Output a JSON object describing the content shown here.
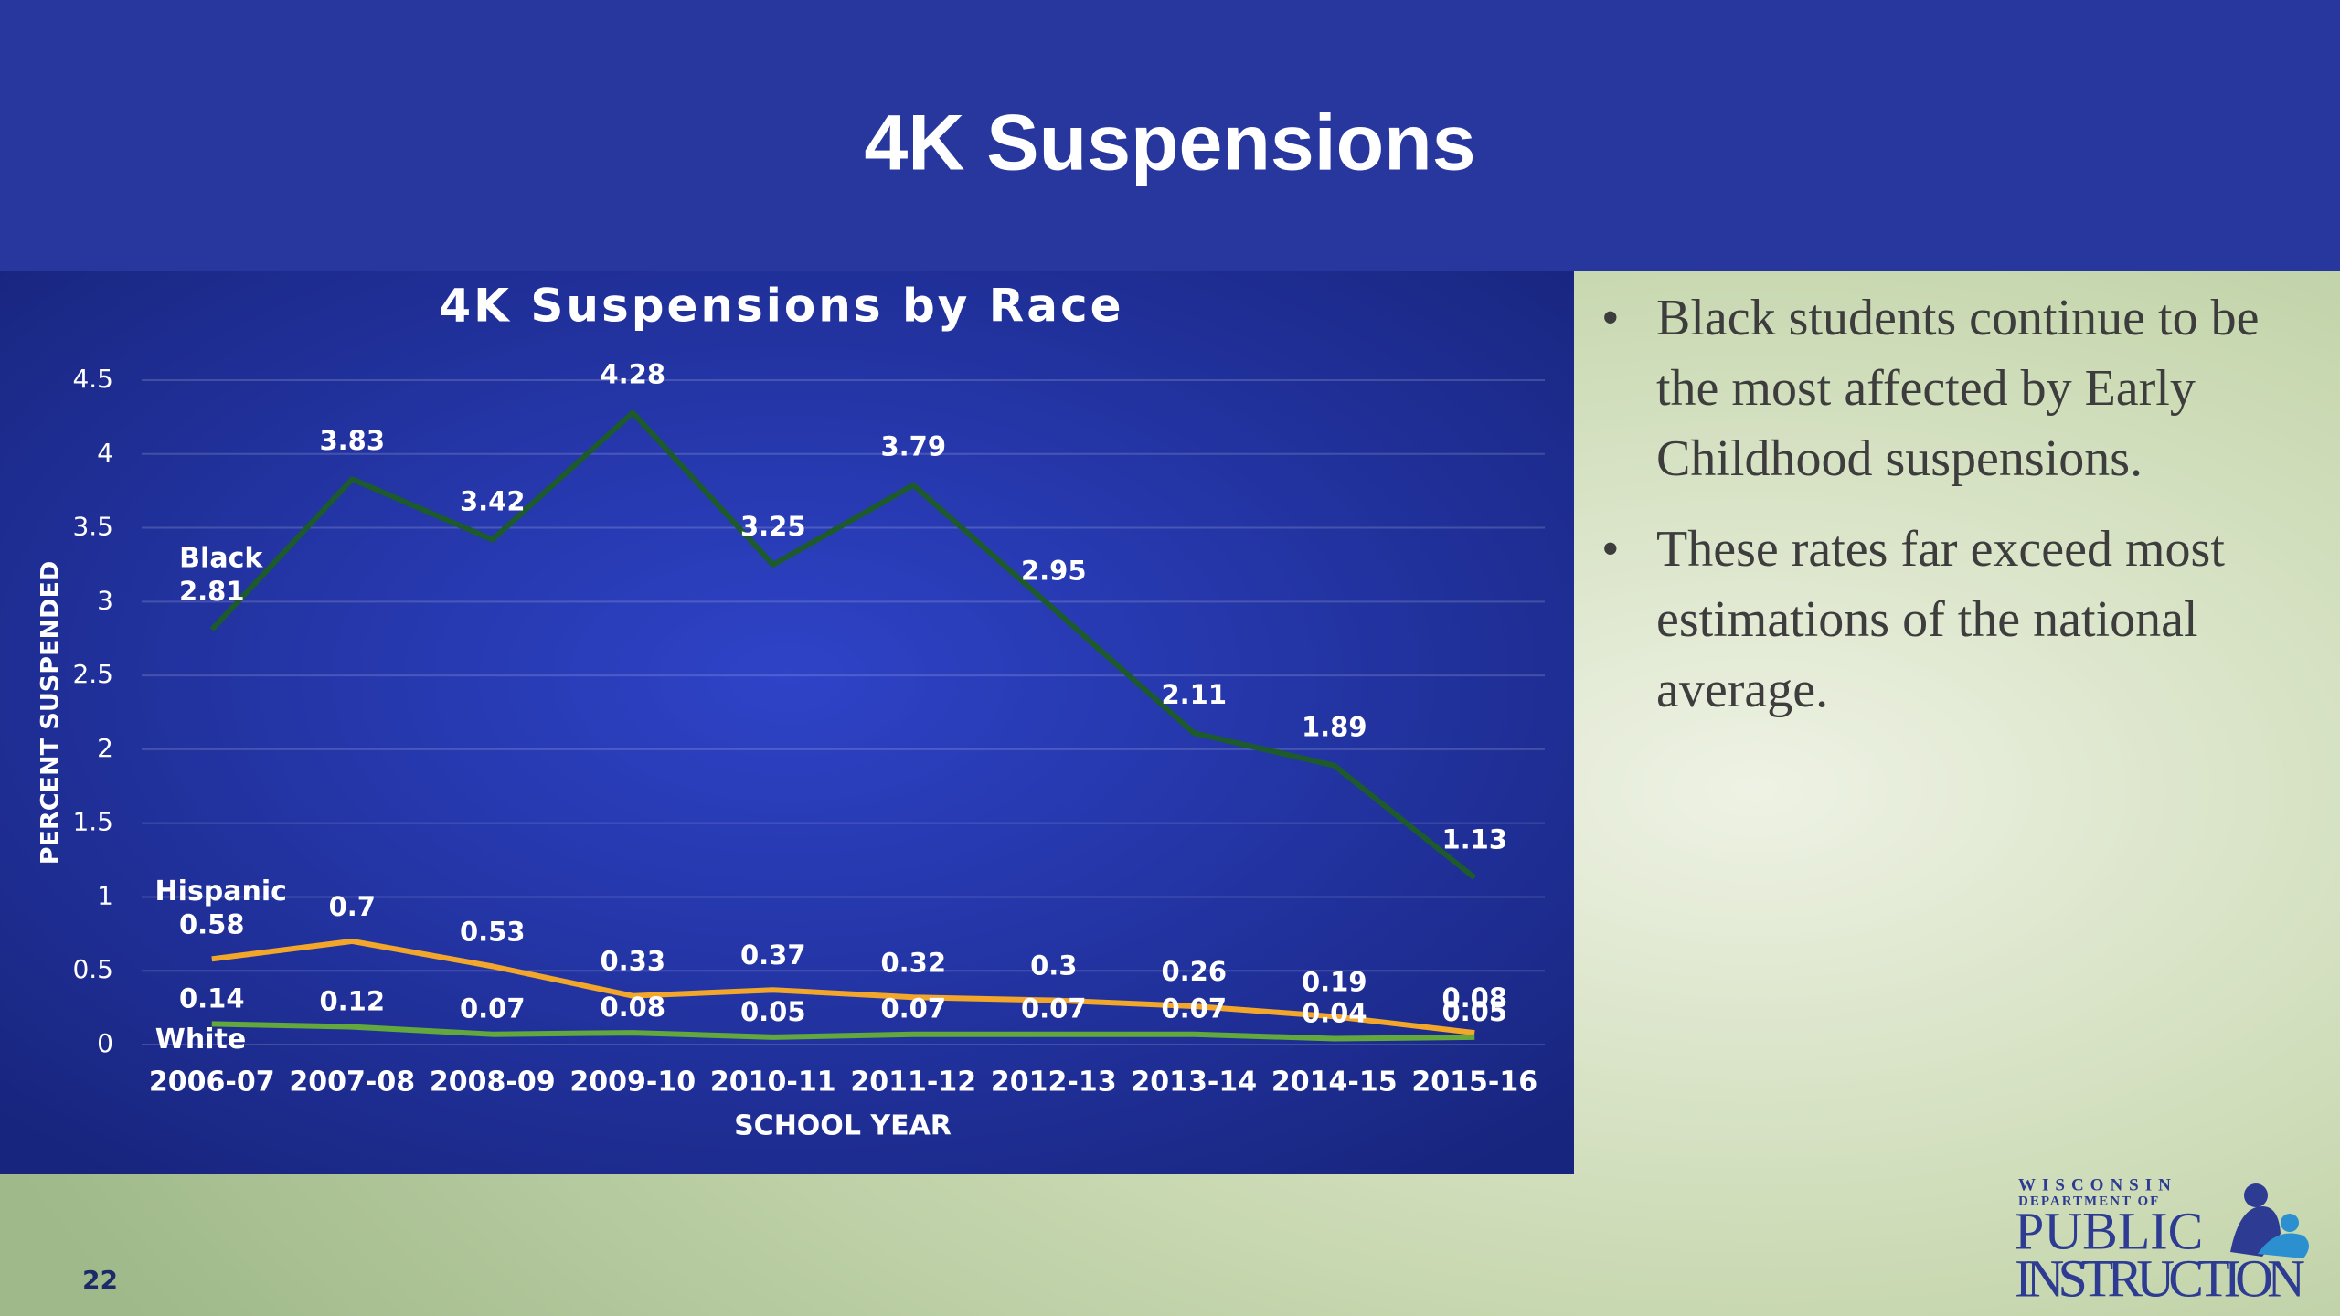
{
  "slide": {
    "title": "4K Suspensions",
    "bullets": [
      "Black students continue to be the most affected by Early Childhood suspensions.",
      "These rates far exceed most estimations of the national average."
    ],
    "page_number": "22",
    "logo": {
      "line1": "WISCONSIN",
      "line2": "DEPARTMENT OF",
      "line3": "PUBLIC",
      "line4": "INSTRUCTION"
    }
  },
  "chart_data": {
    "type": "line",
    "title": "4K Suspensions by Race",
    "x_label": "SCHOOL YEAR",
    "y_label": "PERCENT SUSPENDED",
    "categories": [
      "2006-07",
      "2007-08",
      "2008-09",
      "2009-10",
      "2010-11",
      "2011-12",
      "2012-13",
      "2013-14",
      "2014-15",
      "2015-16"
    ],
    "series": [
      {
        "name": "Black",
        "color": "#1d5a2c",
        "values": [
          2.81,
          3.83,
          3.42,
          4.28,
          3.25,
          3.79,
          2.95,
          2.11,
          1.89,
          1.13
        ]
      },
      {
        "name": "Hispanic",
        "color": "#f2a62a",
        "values": [
          0.58,
          0.7,
          0.53,
          0.33,
          0.37,
          0.32,
          0.3,
          0.26,
          0.19,
          0.08
        ]
      },
      {
        "name": "White",
        "color": "#62a83c",
        "values": [
          0.14,
          0.12,
          0.07,
          0.08,
          0.05,
          0.07,
          0.07,
          0.07,
          0.04,
          0.05
        ]
      }
    ],
    "ylim": [
      0,
      4.5
    ],
    "yticks": [
      0,
      0.5,
      1,
      1.5,
      2,
      2.5,
      3,
      3.5,
      4,
      4.5
    ],
    "grid": true
  }
}
